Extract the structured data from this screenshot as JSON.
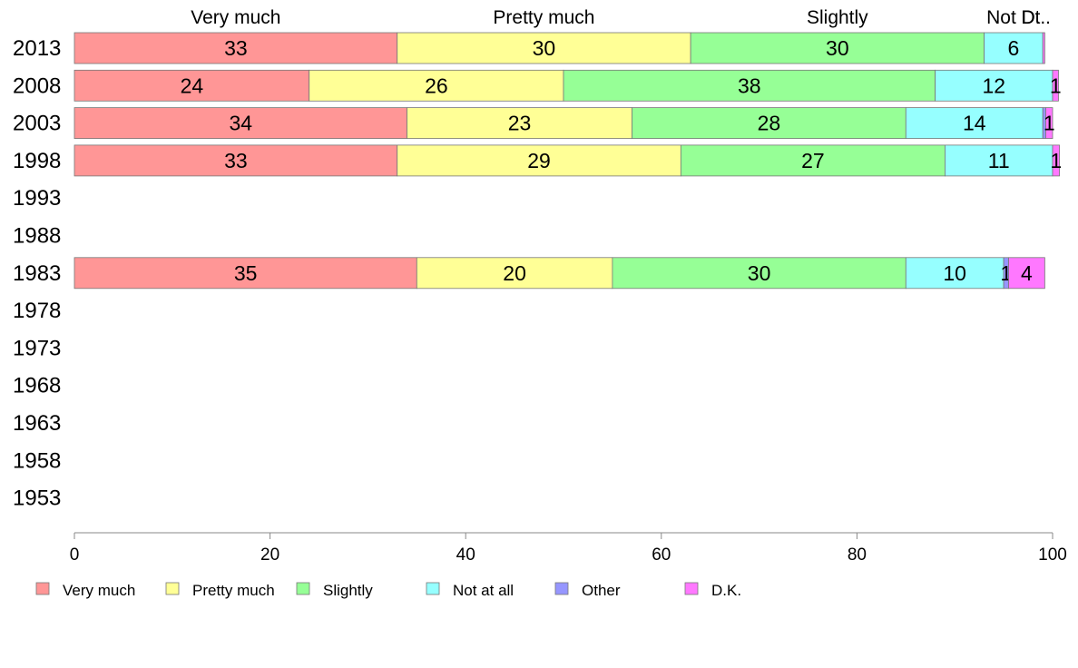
{
  "chart_data": {
    "type": "bar",
    "orientation": "horizontal",
    "stacked": true,
    "categories": [
      "2013",
      "2008",
      "2003",
      "1998",
      "1993",
      "1988",
      "1983",
      "1978",
      "1973",
      "1968",
      "1963",
      "1958",
      "1953"
    ],
    "series": [
      {
        "name": "Very much",
        "color": "#ff9696",
        "values": [
          33,
          24,
          34,
          33,
          null,
          null,
          35,
          null,
          null,
          null,
          null,
          null,
          null
        ]
      },
      {
        "name": "Pretty much",
        "color": "#ffff96",
        "values": [
          30,
          26,
          23,
          29,
          null,
          null,
          20,
          null,
          null,
          null,
          null,
          null,
          null
        ]
      },
      {
        "name": "Slightly",
        "color": "#96ff96",
        "values": [
          30,
          38,
          28,
          27,
          null,
          null,
          30,
          null,
          null,
          null,
          null,
          null,
          null
        ]
      },
      {
        "name": "Not at all",
        "color": "#96ffff",
        "values": [
          6,
          12,
          14,
          11,
          null,
          null,
          10,
          null,
          null,
          null,
          null,
          null,
          null
        ]
      },
      {
        "name": "Other",
        "color": "#9696ff",
        "values": [
          0,
          0,
          0.3,
          0,
          null,
          null,
          0.5,
          null,
          null,
          null,
          null,
          null,
          null
        ]
      },
      {
        "name": "D.K.",
        "color": "#ff78ff",
        "values": [
          0.2,
          0.6,
          0.7,
          0.7,
          null,
          null,
          3.7,
          null,
          null,
          null,
          null,
          null,
          null
        ]
      }
    ],
    "segment_labels": [
      [
        "33",
        "30",
        "30",
        "6",
        "",
        ""
      ],
      [
        "24",
        "26",
        "38",
        "12",
        "",
        "1"
      ],
      [
        "34",
        "23",
        "28",
        "14",
        "",
        "1"
      ],
      [
        "33",
        "29",
        "27",
        "11",
        "",
        "1"
      ],
      [
        "",
        "",
        "",
        "",
        "",
        ""
      ],
      [
        "",
        "",
        "",
        "",
        "",
        ""
      ],
      [
        "35",
        "20",
        "30",
        "10",
        "1",
        "4"
      ],
      [
        "",
        "",
        "",
        "",
        "",
        ""
      ],
      [
        "",
        "",
        "",
        "",
        "",
        ""
      ],
      [
        "",
        "",
        "",
        "",
        "",
        ""
      ],
      [
        "",
        "",
        "",
        "",
        "",
        ""
      ],
      [
        "",
        "",
        "",
        "",
        "",
        ""
      ],
      [
        "",
        "",
        "",
        "",
        "",
        ""
      ]
    ],
    "top_labels": [
      "Very much",
      "Pretty much",
      "Slightly",
      "Not at all",
      "Other",
      "D.K."
    ],
    "top_labels_visible": [
      "Very much",
      "Pretty much",
      "Slightly",
      "Not D.",
      "Dt.."
    ],
    "xlim": [
      0,
      100
    ],
    "xticks": [
      0,
      20,
      40,
      60,
      80,
      100
    ],
    "grid": false,
    "legend_position": "bottom",
    "title": "",
    "xlabel": "",
    "ylabel": ""
  }
}
